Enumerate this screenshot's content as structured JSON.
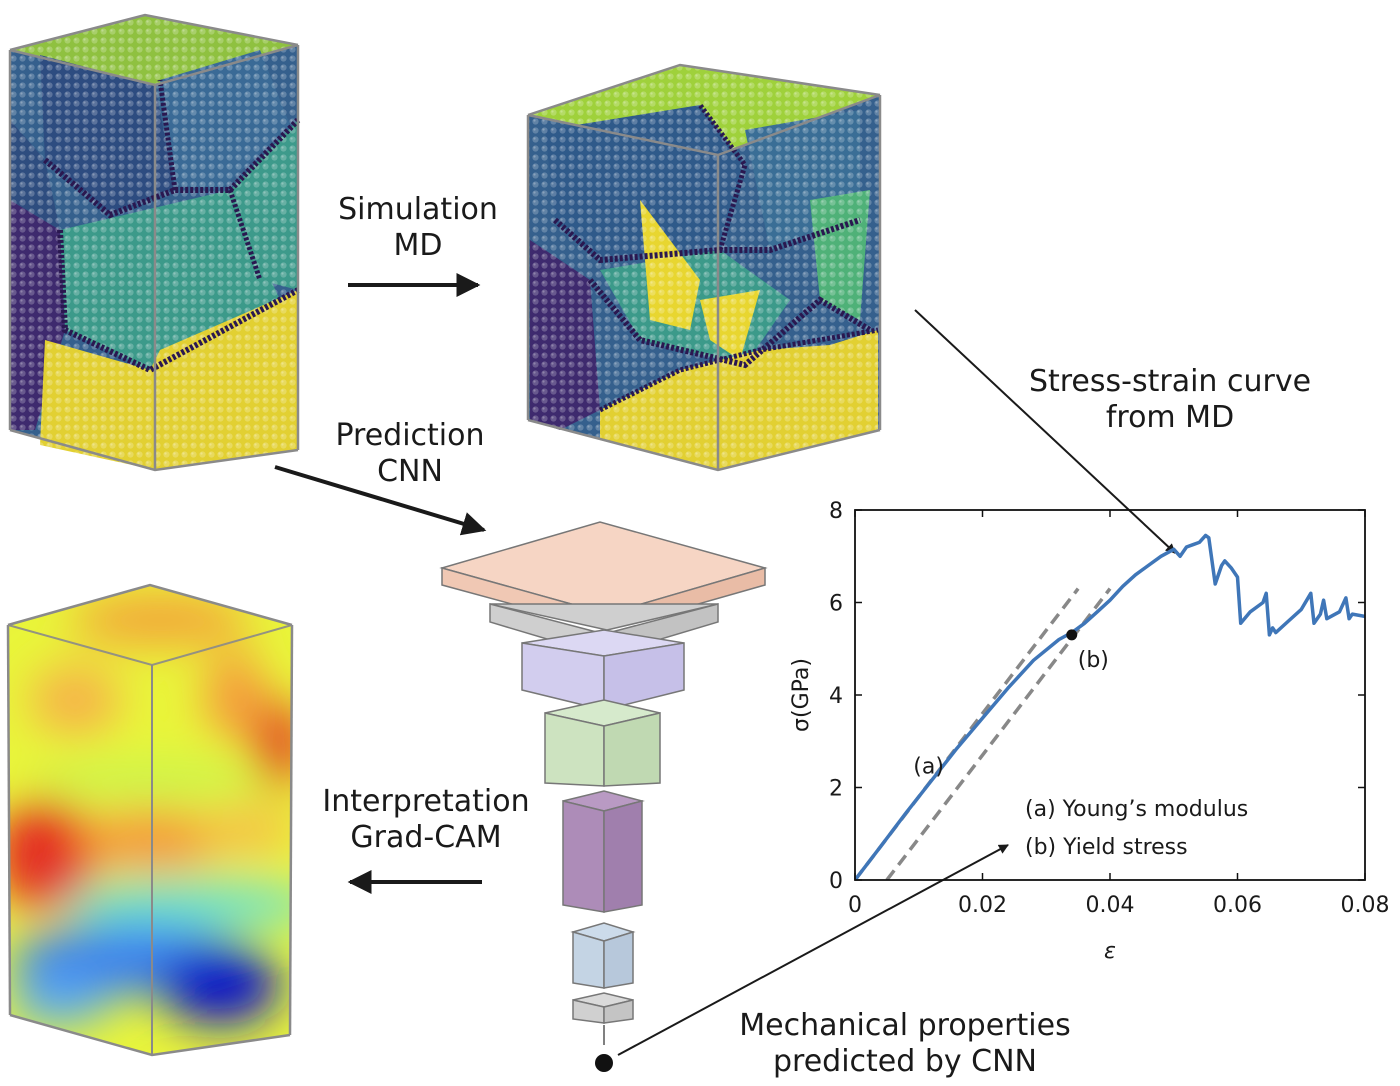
{
  "labels": {
    "simulation": [
      "Simulation",
      "MD"
    ],
    "prediction": [
      "Prediction",
      "CNN"
    ],
    "interpretation": [
      "Interpretation",
      "Grad-CAM"
    ],
    "stress_strain": [
      "Stress-strain curve",
      "from MD"
    ],
    "mechanical": [
      "Mechanical properties",
      "predicted by CNN"
    ]
  },
  "colors": {
    "grains": [
      "#3e2a6e",
      "#35608d",
      "#2b8a8c",
      "#4fb178",
      "#9fd13b",
      "#e8d630"
    ],
    "cnn_layers": [
      "#f6d5c4",
      "#cfcfcf",
      "#d2cdee",
      "#cde3c0",
      "#ad8cb8",
      "#c4d4e4",
      "#d0d0d0"
    ],
    "curve": "#3f76b8",
    "dashed": "#888888"
  },
  "chart_data": {
    "type": "line",
    "xlabel": "ε",
    "ylabel": "σ(GPa)",
    "xlim": [
      0,
      0.08
    ],
    "ylim": [
      0,
      8
    ],
    "xticks": [
      0,
      0.02,
      0.04,
      0.06,
      0.08
    ],
    "xtick_labels": [
      "0",
      "0.02",
      "0.04",
      "0.06",
      "0.08"
    ],
    "yticks": [
      0,
      2,
      4,
      6,
      8
    ],
    "ytick_labels": [
      "0",
      "2",
      "4",
      "6",
      "8"
    ],
    "series": [
      {
        "x": [
          0,
          0.004,
          0.008,
          0.012,
          0.016,
          0.02,
          0.024,
          0.028,
          0.032,
          0.034,
          0.036,
          0.038,
          0.04,
          0.042,
          0.044,
          0.046,
          0.048,
          0.05,
          0.051,
          0.052,
          0.053,
          0.054,
          0.055,
          0.0555,
          0.0565,
          0.0575,
          0.058,
          0.059,
          0.06,
          0.0605,
          0.062,
          0.064,
          0.0645,
          0.065,
          0.0655,
          0.066,
          0.068,
          0.07,
          0.0715,
          0.072,
          0.073,
          0.0735,
          0.074,
          0.076,
          0.077,
          0.0775,
          0.078,
          0.08
        ],
        "y": [
          0,
          0.72,
          1.45,
          2.15,
          2.85,
          3.5,
          4.15,
          4.75,
          5.2,
          5.35,
          5.55,
          5.8,
          6.05,
          6.35,
          6.6,
          6.8,
          7.0,
          7.15,
          7.0,
          7.2,
          7.25,
          7.3,
          7.45,
          7.4,
          6.4,
          6.8,
          6.9,
          6.75,
          6.55,
          5.55,
          5.8,
          6.0,
          6.2,
          5.3,
          5.45,
          5.35,
          5.6,
          5.85,
          6.2,
          5.55,
          5.75,
          6.05,
          5.65,
          5.8,
          6.1,
          5.65,
          5.75,
          5.7
        ]
      }
    ],
    "reference_lines": [
      {
        "x": [
          0,
          0.035
        ],
        "y": [
          0,
          6.3
        ]
      },
      {
        "x": [
          0.005,
          0.04
        ],
        "y": [
          0,
          6.3
        ]
      }
    ],
    "marker": {
      "x": 0.034,
      "y": 5.3,
      "label": "(b)"
    },
    "annotations": [
      {
        "text": "(a)",
        "x": 0.006,
        "y": 2.3
      },
      {
        "text": "(a) Young’s modulus"
      },
      {
        "text": "(b) Yield stress"
      }
    ]
  }
}
